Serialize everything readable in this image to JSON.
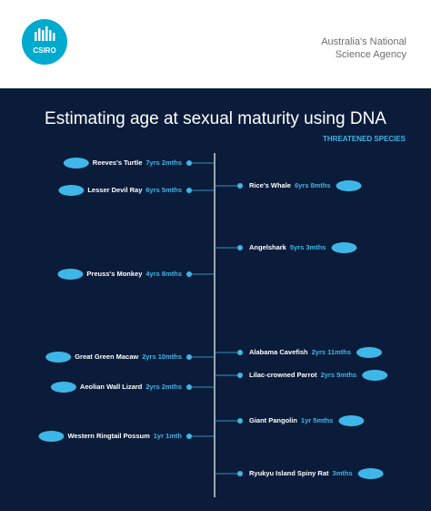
{
  "header": {
    "logo": "CSIRO",
    "agency": [
      "Australia's National",
      "Science Agency"
    ]
  },
  "title": "Estimating age at sexual maturity using DNA",
  "subtitle": "THREATENED SPECIES",
  "left": [
    {
      "name": "Reeves's Turtle",
      "age": "7yrs 2mths"
    },
    {
      "name": "Lesser Devil Ray",
      "age": "6yrs 5mths"
    },
    {
      "name": "Preuss's Monkey",
      "age": "4yrs 8mths"
    },
    {
      "name": "Great Green Macaw",
      "age": "2yrs 10mths"
    },
    {
      "name": "Aeolian Wall Lizard",
      "age": "2yrs 2mths"
    },
    {
      "name": "Western Ringtail Possum",
      "age": "1yr 1mth"
    }
  ],
  "right": [
    {
      "name": "Rice's Whale",
      "age": "6yrs 8mths"
    },
    {
      "name": "Angelshark",
      "age": "5yrs 3mths"
    },
    {
      "name": "Alabama Cavefish",
      "age": "2yrs 11mths"
    },
    {
      "name": "Lilac-crowned Parrot",
      "age": "2yrs 5mths"
    },
    {
      "name": "Giant Pangolin",
      "age": "1yr 5mths"
    },
    {
      "name": "Ryukyu Island Spiny Rat",
      "age": "3mths"
    }
  ]
}
